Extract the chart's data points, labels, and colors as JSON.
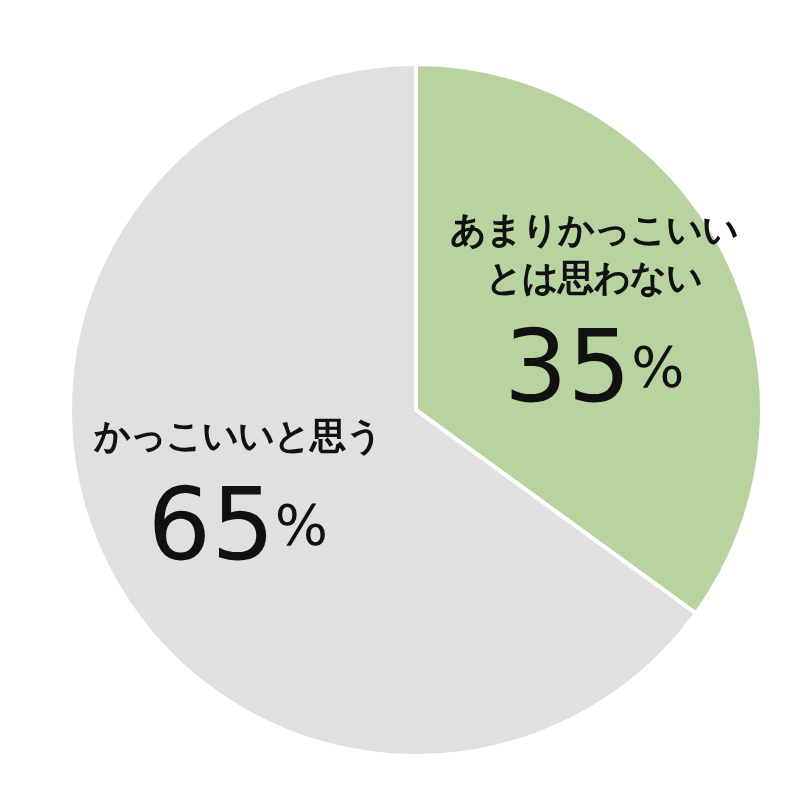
{
  "chart_data": {
    "type": "pie",
    "categories": [
      "あまりかっこいいとは思わない",
      "かっこいいと思う"
    ],
    "values": [
      35,
      65
    ],
    "value_labels": [
      "35%",
      "65%"
    ],
    "colors": [
      "#b9d3a0",
      "#e0e0e0"
    ],
    "legend": false
  }
}
